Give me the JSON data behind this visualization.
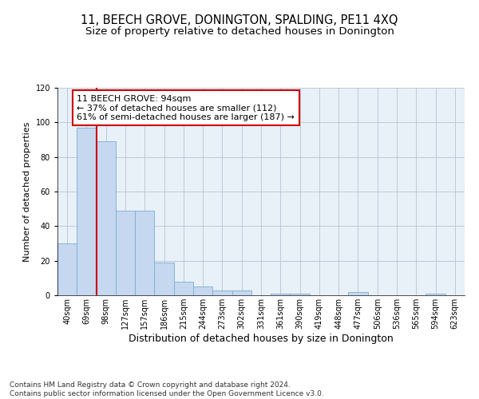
{
  "title": "11, BEECH GROVE, DONINGTON, SPALDING, PE11 4XQ",
  "subtitle": "Size of property relative to detached houses in Donington",
  "xlabel": "Distribution of detached houses by size in Donington",
  "ylabel": "Number of detached properties",
  "categories": [
    "40sqm",
    "69sqm",
    "98sqm",
    "127sqm",
    "157sqm",
    "186sqm",
    "215sqm",
    "244sqm",
    "273sqm",
    "302sqm",
    "331sqm",
    "361sqm",
    "390sqm",
    "419sqm",
    "448sqm",
    "477sqm",
    "506sqm",
    "536sqm",
    "565sqm",
    "594sqm",
    "623sqm"
  ],
  "values": [
    30,
    97,
    89,
    49,
    49,
    19,
    8,
    5,
    3,
    3,
    0,
    1,
    1,
    0,
    0,
    2,
    0,
    0,
    0,
    1,
    0
  ],
  "bar_color": "#c5d8f0",
  "bar_edge_color": "#7aadd4",
  "highlight_line_color": "#cc0000",
  "ylim": [
    0,
    120
  ],
  "yticks": [
    0,
    20,
    40,
    60,
    80,
    100,
    120
  ],
  "annotation_text": "11 BEECH GROVE: 94sqm\n← 37% of detached houses are smaller (112)\n61% of semi-detached houses are larger (187) →",
  "annotation_box_color": "#ffffff",
  "annotation_box_edge_color": "#cc0000",
  "footer_line1": "Contains HM Land Registry data © Crown copyright and database right 2024.",
  "footer_line2": "Contains public sector information licensed under the Open Government Licence v3.0.",
  "background_color": "#ffffff",
  "plot_bg_color": "#e8f0f8",
  "grid_color": "#c0c8d8",
  "title_fontsize": 10.5,
  "subtitle_fontsize": 9.5,
  "xlabel_fontsize": 9,
  "ylabel_fontsize": 8,
  "tick_fontsize": 7,
  "annotation_fontsize": 8,
  "footer_fontsize": 6.5
}
